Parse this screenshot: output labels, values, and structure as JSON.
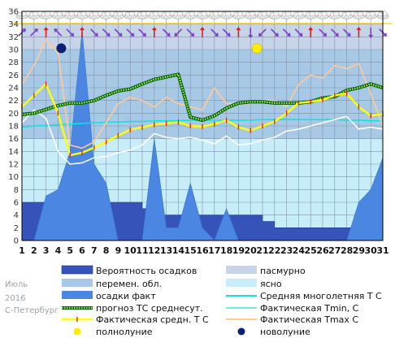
{
  "chart_data": {
    "type": "line",
    "x": [
      1,
      2,
      3,
      4,
      5,
      6,
      7,
      8,
      9,
      10,
      11,
      12,
      13,
      14,
      15,
      16,
      17,
      18,
      19,
      20,
      21,
      22,
      23,
      24,
      25,
      26,
      27,
      28,
      29,
      30,
      31
    ],
    "ylim": [
      0,
      36
    ],
    "yticks": [
      0,
      2,
      4,
      6,
      8,
      10,
      12,
      14,
      16,
      18,
      20,
      22,
      24,
      26,
      28,
      30,
      32,
      34,
      36
    ],
    "grid": true,
    "background_bands": [
      {
        "name": "пасмурно",
        "from": 30,
        "to": 34,
        "color": "#c7d3e6"
      },
      {
        "name": "перемен. обл.",
        "from": 16,
        "to": 30,
        "color": "#a8c9e6"
      },
      {
        "name": "ясно",
        "from": 0,
        "to": 16,
        "color": "#c7eef8"
      }
    ],
    "series": [
      {
        "name": "Вероятность осадков",
        "kind": "step-area",
        "color": "#3553b8",
        "values": [
          6,
          6,
          6,
          6,
          6,
          6,
          6,
          6,
          6,
          6,
          5,
          4,
          4,
          4,
          4,
          4,
          4,
          4,
          4,
          4,
          3,
          2,
          2,
          2,
          2,
          2,
          2,
          2,
          2,
          2,
          2
        ]
      },
      {
        "name": "осадки факт",
        "kind": "area",
        "color": "#4a86e2",
        "values": [
          0,
          0,
          7,
          8,
          14,
          33,
          12,
          9,
          0,
          0,
          0,
          16,
          2,
          2,
          9,
          2,
          0,
          5,
          0,
          0,
          0,
          0,
          0,
          0,
          0,
          0,
          0,
          0,
          6,
          8,
          13
        ]
      },
      {
        "name": "Средняя многолетняя Т С",
        "kind": "line",
        "color": "#10e2e2",
        "values": [
          17.8,
          18.0,
          18.1,
          18.2,
          18.3,
          18.4,
          18.5,
          18.6,
          18.6,
          18.7,
          18.7,
          18.8,
          18.8,
          18.8,
          18.9,
          18.9,
          18.9,
          18.9,
          18.9,
          18.9,
          19.0,
          19.0,
          19.0,
          19.0,
          19.0,
          19.0,
          19.0,
          18.9,
          18.9,
          18.8,
          18.8
        ]
      },
      {
        "name": "прогноз ТС среднесут.",
        "kind": "dotted",
        "color": "#0a7a0a",
        "values": [
          19.8,
          20.0,
          20.6,
          21.2,
          21.6,
          21.6,
          22.0,
          22.8,
          23.5,
          23.8,
          24.6,
          25.3,
          25.7,
          26.1,
          19.4,
          18.9,
          19.6,
          20.8,
          21.6,
          21.8,
          21.8,
          21.6,
          21.6,
          21.6,
          21.8,
          22.4,
          22.6,
          23.6,
          24.0,
          24.6,
          24.0
        ]
      },
      {
        "name": "Фактическая Tmin, C",
        "kind": "line",
        "color": "#ffffff",
        "values": [
          18.5,
          20.5,
          19.2,
          14.0,
          12.0,
          12.2,
          13.0,
          13.2,
          13.8,
          14.2,
          15.0,
          16.8,
          16.2,
          16.0,
          16.2,
          15.8,
          15.2,
          16.4,
          15.0,
          15.2,
          15.8,
          16.2,
          17.2,
          17.5,
          18.0,
          18.5,
          19.0,
          19.5,
          17.5,
          17.8,
          17.5
        ]
      },
      {
        "name": "Фактическая средн. Т С",
        "kind": "line-markers",
        "color": "#ffff00",
        "marker_color": "#e02020",
        "values": [
          21.0,
          22.8,
          24.6,
          20.0,
          13.4,
          13.8,
          14.6,
          15.5,
          16.5,
          17.4,
          17.8,
          18.2,
          18.4,
          18.6,
          18.0,
          17.9,
          18.3,
          18.9,
          17.8,
          17.3,
          18.0,
          18.7,
          20.0,
          21.6,
          21.8,
          22.1,
          22.8,
          23.1,
          21.0,
          19.6,
          19.9
        ]
      },
      {
        "name": "Фактическая Tmax C",
        "kind": "line",
        "color": "#ffc99a",
        "values": [
          24.5,
          27.5,
          31.5,
          29.5,
          15.0,
          14.5,
          15.5,
          18.5,
          21.5,
          22.5,
          22.0,
          21.0,
          22.5,
          21.5,
          21.0,
          20.5,
          24.0,
          21.5,
          21.5,
          21.5,
          22.0,
          22.0,
          21.0,
          24.5,
          26.0,
          25.5,
          27.5,
          27.0,
          27.8,
          23.0,
          18.0
        ]
      }
    ],
    "moon": {
      "full": {
        "label": "полнолуние",
        "day": 20,
        "color": "#ffee00"
      },
      "new": {
        "label": "новолуние",
        "day": 4,
        "color": "#0d1f6e"
      }
    }
  },
  "legend": {
    "col1": [
      "Вероятность осадков",
      "перемен. обл.",
      "осадки факт",
      "прогноз ТС среднесут.",
      "Фактическая средн. Т С",
      "полнолуние"
    ],
    "col2": [
      "пасмурно",
      "ясно",
      "Средняя многолетняя Т С",
      "Фактическая Tmin, C",
      "Фактическая Tmax C",
      "новолуние"
    ]
  },
  "footer": {
    "month": "Июль",
    "year": "2016",
    "city": "С-Петербург"
  },
  "wind_directions": [
    "NE",
    "NE",
    "N",
    "NW",
    "SE",
    "N",
    "SE",
    "SE",
    "SE",
    "SE",
    "SE",
    "N",
    "SE",
    "SW",
    "SE",
    "N",
    "SE",
    "SE",
    "N",
    "S",
    "SW",
    "SE",
    "SE",
    "SE",
    "N",
    "SE",
    "SE",
    "SE",
    "N",
    "S",
    "SE"
  ],
  "colors": {
    "axis": "#000000",
    "grid": "#7f93a8",
    "wind_arrow": "#7b3cc8",
    "wind_arrow_north": "#d62020"
  }
}
